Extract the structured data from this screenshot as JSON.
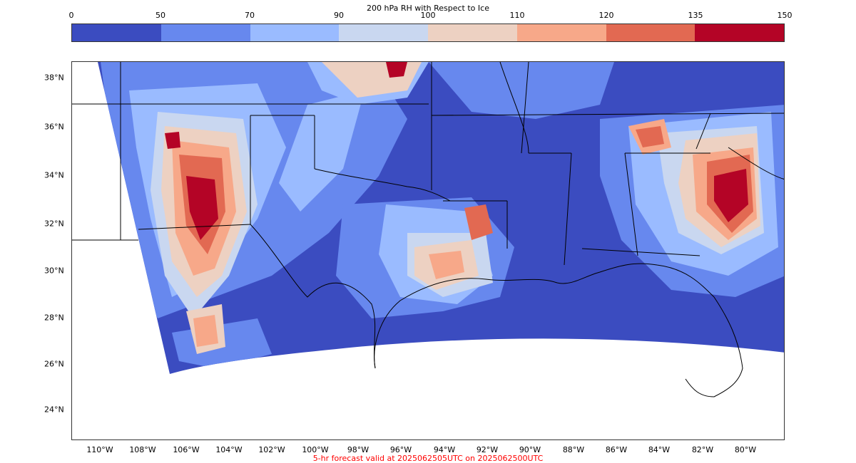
{
  "title": "200 hPa RH with Respect to Ice",
  "colorbar": {
    "tick_labels": [
      "0",
      "50",
      "70",
      "90",
      "100",
      "110",
      "120",
      "135",
      "150"
    ],
    "segment_colors": [
      "#3b4cc0",
      "#6788ee",
      "#9abbff",
      "#c9d7f0",
      "#edd1c2",
      "#f7a889",
      "#e26952",
      "#b40426"
    ]
  },
  "map": {
    "lat_labels": [
      "38°N",
      "36°N",
      "34°N",
      "32°N",
      "30°N",
      "28°N",
      "26°N",
      "24°N"
    ],
    "lon_labels": [
      "110°W",
      "108°W",
      "106°W",
      "104°W",
      "102°W",
      "100°W",
      "98°W",
      "96°W",
      "94°W",
      "92°W",
      "90°W",
      "88°W",
      "86°W",
      "84°W",
      "82°W",
      "80°W"
    ],
    "background_color": "#3b4cc0"
  },
  "footer": {
    "text": "5-hr forecast valid at 2025062505UTC on 2025062500UTC",
    "color": "#ff0000"
  }
}
